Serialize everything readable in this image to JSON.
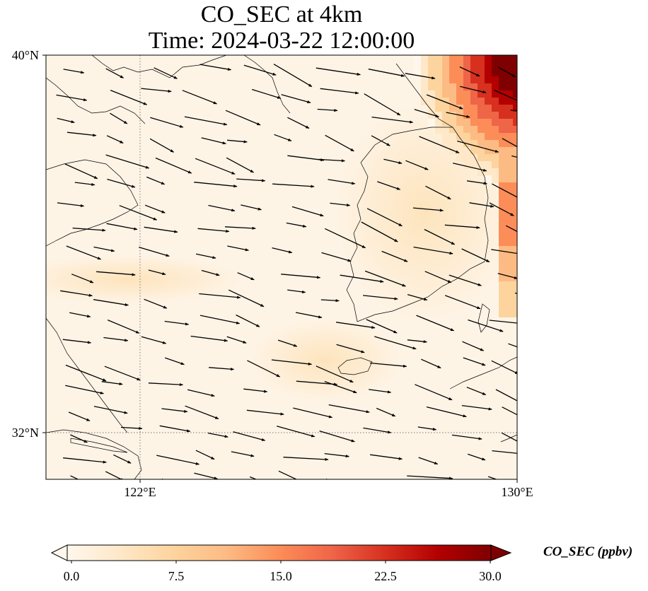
{
  "title": {
    "line1": "CO_SEC at 4km",
    "line2": "Time: 2024-03-22 12:00:00"
  },
  "map": {
    "field": "CO_SEC",
    "level": "4km",
    "lat_range": [
      31,
      40.0
    ],
    "lon_range": [
      120,
      130
    ],
    "lat_ticks": [
      "40°N",
      "32°N"
    ],
    "lon_ticks": [
      "122°E",
      "130°E"
    ],
    "gridlines": {
      "lat": 32,
      "lon": 122,
      "style": "dotted"
    },
    "high_concentration_region": "northeast corner (off Korean peninsula / East Sea)",
    "wind_vectors": "black arrows, predominantly westerly to north-westerly"
  },
  "colorbar": {
    "colormap": "OrRd",
    "label": "CO_SEC (ppbv)",
    "ticks": [
      "0.0",
      "7.5",
      "15.0",
      "22.5",
      "30.0"
    ],
    "min": 0,
    "max": 30,
    "extend": "both",
    "colors": [
      "#fff7ec",
      "#fee8c8",
      "#fdd49e",
      "#fdbb84",
      "#fc8d59",
      "#ef6548",
      "#d7301f",
      "#b30000",
      "#7f0000"
    ]
  }
}
